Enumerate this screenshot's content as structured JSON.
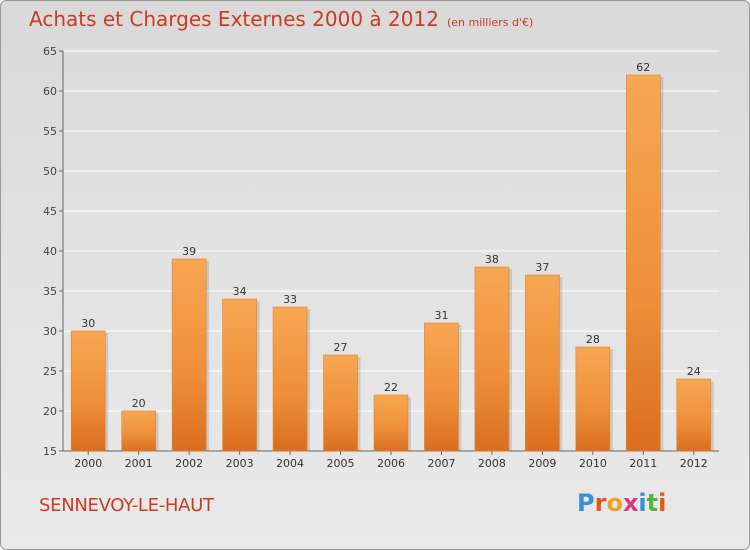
{
  "header": {
    "title": "Achats et Charges Externes 2000 à 2012",
    "unit": "(en milliers d'€)"
  },
  "footer": {
    "place": "SENNEVOY-LE-HAUT",
    "logo": [
      "P",
      "r",
      "o",
      "x",
      "i",
      "t",
      "i"
    ],
    "logo_colors": [
      "#3b8fd6",
      "#e8541a",
      "#f0a12a",
      "#d93a7e",
      "#3b8fd6",
      "#56b23a",
      "#e8541a"
    ]
  },
  "chart_data": {
    "type": "bar",
    "title": "Achats et Charges Externes 2000 à 2012",
    "subtitle": "(en milliers d'€)",
    "categories": [
      "2000",
      "2001",
      "2002",
      "2003",
      "2004",
      "2005",
      "2006",
      "2007",
      "2008",
      "2009",
      "2010",
      "2011",
      "2012"
    ],
    "values": [
      30,
      20,
      39,
      34,
      33,
      27,
      22,
      31,
      38,
      37,
      28,
      62,
      24
    ],
    "ylim": [
      15,
      65
    ],
    "yticks": [
      15,
      20,
      25,
      30,
      35,
      40,
      45,
      50,
      55,
      60,
      65
    ],
    "grid": true,
    "bar_color": "#ee8f3a",
    "text_color": "#cc3b1e"
  }
}
